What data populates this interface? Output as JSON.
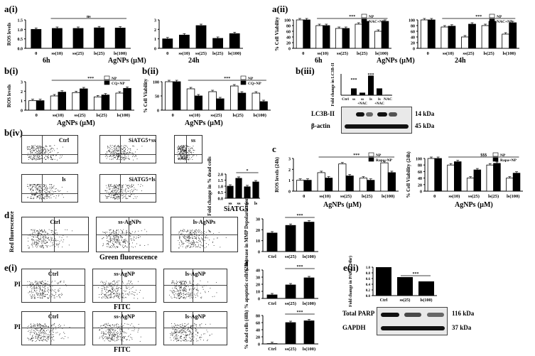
{
  "labels": {
    "ai": "a",
    "ai_sub": "(i)",
    "aii": "a",
    "aii_sub": "(ii)",
    "bi": "b",
    "bi_sub": "(i)",
    "bii": "b",
    "bii_sub": "(ii)",
    "biii": "b",
    "biii_sub": "(iii)",
    "biv": "b",
    "biv_sub": "(iv)",
    "c": "c",
    "d": "d",
    "ei": "e",
    "ei_sub": "(i)",
    "eii": "e",
    "eii_sub": "(ii)"
  },
  "captions": {
    "ai_6h": "6h",
    "ai_24h": "24h",
    "ai_x": "AgNPs (μM)",
    "aii_6h": "6h",
    "aii_24h": "24h",
    "aii_x": "AgNPs (μM)",
    "bi_x": "AgNPs (μM)",
    "bii_x": "AgNPs (μM)",
    "c_x1": "AgNPs (μM)",
    "c_x2": "AgNPs (μM)",
    "siatg": "SiATG5",
    "d_red": "Red fluorescence",
    "d_green": "Green fluorescence",
    "ei_fitc1": "FITC",
    "ei_fitc2": "FITC",
    "ei_pi1": "PI",
    "ei_pi2": "PI"
  },
  "blots": {
    "biii": {
      "ylabel": "Fold change in LC3B-II",
      "lanes": [
        "Ctrl",
        "ss",
        "ss",
        "ls",
        "ls",
        "NAC"
      ],
      "nac_labels": [
        "+NAC",
        "+NAC"
      ],
      "row1": "LC3B-II",
      "row1_kda": "14 kDa",
      "row2": "β-actin",
      "row2_kda": "45 kDa",
      "values": [
        0.0,
        0.8,
        0.3,
        2.3,
        0.8,
        0.05
      ],
      "sig": [
        "***",
        "***"
      ]
    },
    "eii": {
      "ylabel": "Fold change in PARP (24hr)",
      "categories": [
        "Ctrl",
        "ss(25)",
        "ls(100)"
      ],
      "values": [
        1.0,
        0.65,
        0.5
      ],
      "yticks": [
        "1.0",
        "0.8",
        "0.6",
        "0.4",
        "0.2",
        "0.0"
      ],
      "row1": "Total PARP",
      "row1_kda": "116 kDa",
      "row2": "GAPDH",
      "row2_kda": "37 kDa",
      "sig": "***"
    }
  },
  "flow": {
    "biv": [
      "Ctrl",
      "SiATG5+ss",
      "ss",
      "ls",
      "SiATG5+ls"
    ],
    "d": [
      "Ctrl",
      "ss-AgNPs",
      "ls-AgNPs"
    ],
    "ei_top": [
      "Ctrl",
      "ss-AgNP",
      "ls-AgNP"
    ],
    "ei_bottom": [
      "Ctrl",
      "ss-AgNP",
      "ls-AgNP"
    ]
  },
  "chart_data": [
    {
      "id": "ai-6h",
      "type": "bar",
      "ylabel": "ROS levels",
      "categories": [
        "0",
        "ss(10)",
        "ss(25)",
        "ls(25)",
        "ls(100)"
      ],
      "values": [
        1.0,
        1.05,
        1.05,
        1.08,
        1.07
      ],
      "ylim": [
        0,
        1.5
      ],
      "yticks": [
        "0.0",
        "0.5",
        "1.0",
        "1.5"
      ],
      "sig": "ns"
    },
    {
      "id": "ai-24h",
      "type": "bar",
      "ylabel": "",
      "categories": [
        "0",
        "ss(10)",
        "ss(25)",
        "ls(25)",
        "ls(100)"
      ],
      "values": [
        1.0,
        1.4,
        2.4,
        1.05,
        1.55
      ],
      "ylim": [
        0,
        3.0
      ],
      "yticks": [
        "0",
        "1",
        "2",
        "3"
      ]
    },
    {
      "id": "aii-6h",
      "type": "bar",
      "ylabel": "% Cell Viability",
      "categories": [
        "0",
        "ss(10)",
        "ss(25)",
        "ls(25)",
        "ls(100)"
      ],
      "legend": [
        "NP",
        "NAC+NP"
      ],
      "series": [
        {
          "name": "NP",
          "values": [
            100,
            80,
            70,
            85,
            60
          ]
        },
        {
          "name": "NAC+NP",
          "values": [
            100,
            80,
            70,
            95,
            95
          ]
        }
      ],
      "ylim": [
        0,
        100
      ],
      "yticks": [
        "0",
        "20",
        "40",
        "60",
        "80",
        "100"
      ],
      "sig": "***"
    },
    {
      "id": "aii-24h",
      "type": "bar",
      "ylabel": "",
      "categories": [
        "0",
        "ss(10)",
        "ss(25)",
        "ls(25)",
        "ls(100)"
      ],
      "legend": [
        "NP",
        "NAC+NP"
      ],
      "series": [
        {
          "name": "NP",
          "values": [
            100,
            75,
            40,
            80,
            50
          ]
        },
        {
          "name": "NAC+NP",
          "values": [
            100,
            78,
            85,
            95,
            90
          ]
        }
      ],
      "ylim": [
        0,
        100
      ],
      "yticks": [
        "0",
        "20",
        "40",
        "60",
        "80",
        "100"
      ],
      "sig": "***"
    },
    {
      "id": "bi",
      "type": "bar",
      "ylabel": "ROS levels",
      "categories": [
        "0",
        "ss(10)",
        "ss(25)",
        "ls(25)",
        "ls(100)"
      ],
      "legend": [
        "NP",
        "CQ+NP"
      ],
      "series": [
        {
          "name": "NP",
          "values": [
            1.0,
            1.5,
            1.85,
            1.4,
            1.8
          ]
        },
        {
          "name": "CQ+NP",
          "values": [
            1.0,
            1.9,
            2.25,
            1.6,
            2.3
          ]
        }
      ],
      "ylim": [
        0,
        3.0
      ],
      "yticks": [
        "0",
        "1",
        "2",
        "3"
      ],
      "sig": "***"
    },
    {
      "id": "bii",
      "type": "bar",
      "ylabel": "% Cell Viability",
      "categories": [
        "0",
        "ss(10)",
        "ss(25)",
        "ls(25)",
        "ls(100)"
      ],
      "legend": [
        "NP",
        "CQ+NP"
      ],
      "series": [
        {
          "name": "NP",
          "values": [
            100,
            75,
            65,
            85,
            60
          ]
        },
        {
          "name": "CQ+NP",
          "values": [
            100,
            50,
            40,
            60,
            30
          ]
        }
      ],
      "ylim": [
        0,
        100
      ],
      "yticks": [
        "0",
        "50",
        "100"
      ],
      "sig": "***"
    },
    {
      "id": "biv-bar",
      "type": "bar",
      "ylabel": "Fold change in % dead cells",
      "categories": [
        "ss",
        "ss",
        "ls",
        "ls"
      ],
      "values": [
        1.0,
        1.65,
        0.95,
        1.35
      ],
      "ylim": [
        0,
        2.0
      ],
      "yticks": [
        "0.0",
        "0.5",
        "1.0",
        "1.5",
        "2.0"
      ],
      "sig": "*"
    },
    {
      "id": "c-ros",
      "type": "bar",
      "ylabel": "ROS levels (24h)",
      "categories": [
        "0",
        "ss(10)",
        "ss(25)",
        "ls(25)",
        "ls(100)"
      ],
      "legend": [
        "NP",
        "Rapa+NP"
      ],
      "series": [
        {
          "name": "NP",
          "values": [
            1.0,
            1.7,
            2.5,
            1.2,
            2.6
          ]
        },
        {
          "name": "Rapa+NP",
          "values": [
            1.0,
            1.2,
            1.4,
            1.0,
            1.7
          ]
        }
      ],
      "ylim": [
        0,
        3.0
      ],
      "yticks": [
        "0",
        "1",
        "2",
        "3"
      ],
      "sig": "***"
    },
    {
      "id": "c-via",
      "type": "bar",
      "ylabel": "% Cell Viability (24h)",
      "categories": [
        "0",
        "ss(10)",
        "ss(25)",
        "ls(25)",
        "ls(100)"
      ],
      "legend": [
        "NP",
        "Rapa+NP"
      ],
      "series": [
        {
          "name": "NP",
          "values": [
            100,
            80,
            40,
            80,
            40
          ]
        },
        {
          "name": "Rapa+NP",
          "values": [
            100,
            90,
            65,
            85,
            55
          ]
        }
      ],
      "ylim": [
        0,
        100
      ],
      "yticks": [
        "0",
        "20",
        "40",
        "60",
        "80",
        "100"
      ],
      "sig": "$$$"
    },
    {
      "id": "d-bar",
      "type": "bar",
      "ylabel": "% Increase in MMP Depolarization",
      "categories": [
        "Ctrl",
        "ss(25)",
        "ls(100)"
      ],
      "values": [
        17,
        24,
        27
      ],
      "ylim": [
        0,
        30
      ],
      "yticks": [
        "0",
        "10",
        "20",
        "30"
      ],
      "sig": "***"
    },
    {
      "id": "ei-top",
      "type": "bar",
      "ylabel": "% apoptotic cells (24h)",
      "categories": [
        "Ctrl",
        "ss(25)",
        "ls(100)"
      ],
      "values": [
        5,
        19,
        29
      ],
      "ylim": [
        0,
        40
      ],
      "yticks": [
        "0",
        "10",
        "20",
        "30",
        "40"
      ],
      "sig": "***"
    },
    {
      "id": "ei-bottom",
      "type": "bar",
      "ylabel": "% dead cells (48h)",
      "categories": [
        "Ctrl",
        "ss(25)",
        "ls(100)"
      ],
      "values": [
        1,
        60,
        65
      ],
      "ylim": [
        0,
        80
      ],
      "yticks": [
        "0",
        "20",
        "40",
        "60",
        "80"
      ],
      "sig": "***"
    }
  ]
}
